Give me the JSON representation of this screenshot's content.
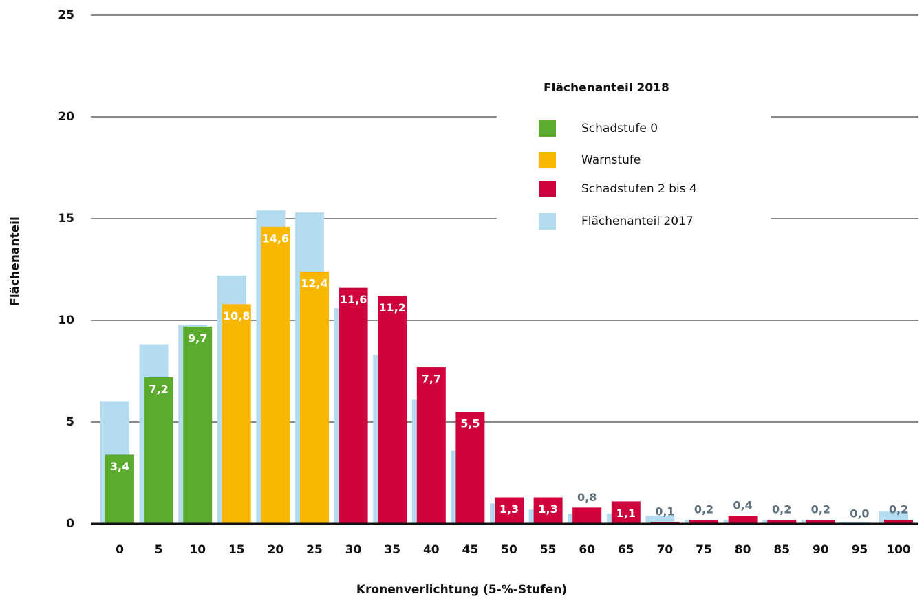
{
  "chart_data": {
    "type": "bar",
    "x_label": "Kronenverlichtung (5-%-Stufen)",
    "y_label": "Flächenanteil",
    "legend_title": "Flächenanteil 2018",
    "categories": [
      "0",
      "5",
      "10",
      "15",
      "20",
      "25",
      "30",
      "35",
      "40",
      "45",
      "50",
      "55",
      "60",
      "65",
      "70",
      "75",
      "80",
      "85",
      "90",
      "95",
      "100"
    ],
    "ylim": [
      0,
      25
    ],
    "yticks": [
      0,
      5,
      10,
      15,
      20,
      25
    ],
    "grid": true,
    "legend": "upper right",
    "series": [
      {
        "name": "Schadstufe 0",
        "color": "#5aab2e",
        "values": [
          3.4,
          7.2,
          9.7,
          null,
          null,
          null,
          null,
          null,
          null,
          null,
          null,
          null,
          null,
          null,
          null,
          null,
          null,
          null,
          null,
          null,
          null
        ],
        "value_labels": [
          "3,4",
          "7,2",
          "9,7",
          null,
          null,
          null,
          null,
          null,
          null,
          null,
          null,
          null,
          null,
          null,
          null,
          null,
          null,
          null,
          null,
          null,
          null
        ]
      },
      {
        "name": "Warnstufe",
        "color": "#f8b800",
        "values": [
          null,
          null,
          null,
          10.8,
          14.6,
          12.4,
          null,
          null,
          null,
          null,
          null,
          null,
          null,
          null,
          null,
          null,
          null,
          null,
          null,
          null,
          null
        ],
        "value_labels": [
          null,
          null,
          null,
          "10,8",
          "14,6",
          "12,4",
          null,
          null,
          null,
          null,
          null,
          null,
          null,
          null,
          null,
          null,
          null,
          null,
          null,
          null,
          null
        ]
      },
      {
        "name": "Schadstufen 2 bis 4",
        "color": "#d0043c",
        "values": [
          null,
          null,
          null,
          null,
          null,
          null,
          11.6,
          11.2,
          7.7,
          5.5,
          1.3,
          1.3,
          0.8,
          1.1,
          0.1,
          0.2,
          0.4,
          0.2,
          0.2,
          0.0,
          0.2
        ],
        "value_labels": [
          null,
          null,
          null,
          null,
          null,
          null,
          "11,6",
          "11,2",
          "7,7",
          "5,5",
          "1,3",
          "1,3",
          "0,8",
          "1,1",
          "0,1",
          "0,2",
          "0,4",
          "0,2",
          "0,2",
          "0,0",
          "0,2"
        ]
      },
      {
        "name": "Flächenanteil 2017",
        "color": "#b4dcf1",
        "values": [
          6.0,
          8.8,
          9.8,
          12.2,
          15.4,
          15.3,
          10.6,
          8.3,
          6.1,
          3.6,
          1.0,
          0.7,
          0.5,
          0.5,
          0.4,
          0.2,
          0.2,
          0.2,
          0.2,
          0.1,
          0.6
        ]
      }
    ]
  }
}
